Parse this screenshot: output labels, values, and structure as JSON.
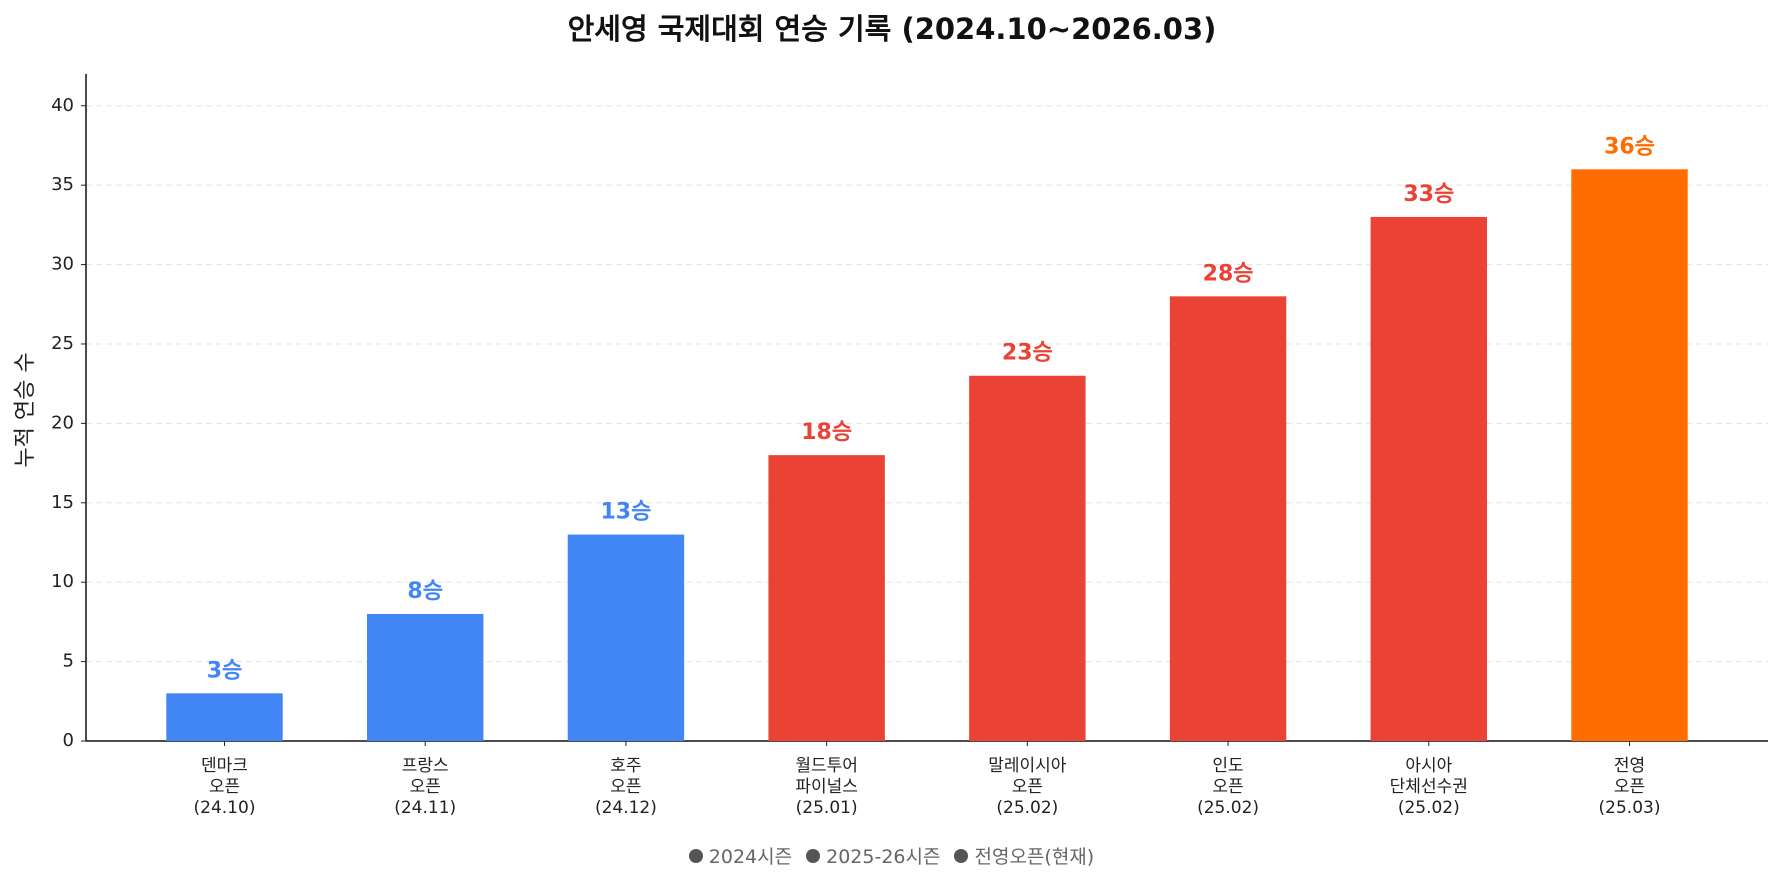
{
  "chart_data": {
    "type": "bar",
    "title": "안세영 국제대회 연승 기록 (2024.10~2026.03)",
    "ylabel": "누적 연승 수",
    "categories": [
      "덴마크\n오픈\n(24.10)",
      "프랑스\n오픈\n(24.11)",
      "호주\n오픈\n(24.12)",
      "월드투어\n파이널스\n(25.01)",
      "말레이시아\n오픈\n(25.02)",
      "인도\n오픈\n(25.02)",
      "아시아\n단체선수권\n(25.02)",
      "전영\n오픈\n(25.03)"
    ],
    "values": [
      3,
      8,
      13,
      18,
      23,
      28,
      33,
      36
    ],
    "value_labels": [
      "3승",
      "8승",
      "13승",
      "18승",
      "23승",
      "28승",
      "33승",
      "36승"
    ],
    "colors": [
      "#4285f4",
      "#4285f4",
      "#4285f4",
      "#ea4335",
      "#ea4335",
      "#ea4335",
      "#ea4335",
      "#ff6d00"
    ],
    "legend": [
      "2024시즌",
      "2025-26시즌",
      "전영오픈(현재)"
    ],
    "ylim": [
      0,
      42
    ],
    "yticks": [
      0,
      5,
      10,
      15,
      20,
      25,
      30,
      35,
      40
    ],
    "grid": true
  }
}
